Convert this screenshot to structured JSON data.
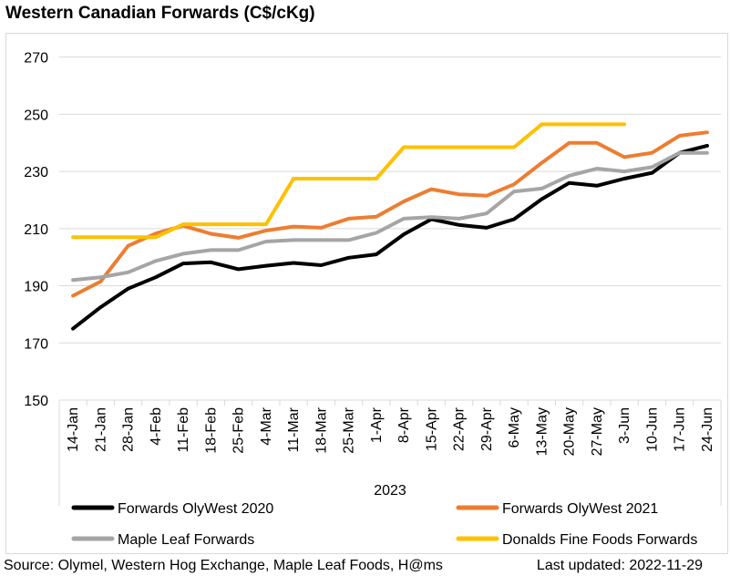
{
  "title": "Western Canadian Forwards (C$/cKg)",
  "footer": {
    "source": "Source: Olymel, Western Hog Exchange, Maple Leaf Foods, H@ms",
    "updated": "Last updated:  2022-11-29"
  },
  "chart_data": {
    "type": "line",
    "title": "Western Canadian Forwards (C$/cKg)",
    "xlabel": "2023",
    "ylabel": "",
    "ylim": [
      150,
      275
    ],
    "yticks": [
      150,
      170,
      190,
      210,
      230,
      250,
      270
    ],
    "grid": "horizontal",
    "legend_position": "bottom",
    "categories": [
      "14-Jan",
      "21-Jan",
      "28-Jan",
      "4-Feb",
      "11-Feb",
      "18-Feb",
      "25-Feb",
      "4-Mar",
      "11-Mar",
      "18-Mar",
      "25-Mar",
      "1-Apr",
      "8-Apr",
      "15-Apr",
      "22-Apr",
      "29-Apr",
      "6-May",
      "13-May",
      "20-May",
      "27-May",
      "3-Jun",
      "10-Jun",
      "17-Jun",
      "24-Jun"
    ],
    "series": [
      {
        "name": "Forwards OlyWest 2020",
        "color": "#000000",
        "values": [
          175,
          182.5,
          189,
          193,
          197.8,
          198.2,
          195.8,
          197,
          198,
          197.2,
          199.8,
          201,
          208,
          213.3,
          211.3,
          210.3,
          213.3,
          220.3,
          226,
          225,
          227.5,
          229.5,
          236.5,
          239
        ]
      },
      {
        "name": "Forwards OlyWest 2021",
        "color": "#ED7D31",
        "values": [
          186.5,
          191.5,
          204,
          208.3,
          211,
          208.2,
          206.8,
          209.3,
          210.7,
          210.3,
          213.5,
          214.2,
          219.5,
          223.8,
          222,
          221.5,
          225.5,
          233,
          240,
          240,
          235,
          236.5,
          242.5,
          243.7
        ]
      },
      {
        "name": "Maple Leaf Forwards",
        "color": "#A5A5A5",
        "values": [
          192,
          193,
          194.7,
          198.7,
          201.2,
          202.5,
          202.5,
          205.5,
          206,
          206,
          206,
          208.5,
          213.5,
          214,
          213.5,
          215.3,
          223,
          224,
          228.5,
          231,
          230,
          231.5,
          236.5,
          236.5
        ]
      },
      {
        "name": "Donalds Fine Foods Forwards",
        "color": "#FFC000",
        "values": [
          207,
          207,
          207,
          207,
          211.5,
          211.5,
          211.5,
          211.5,
          227.5,
          227.5,
          227.5,
          227.5,
          238.5,
          238.5,
          238.5,
          238.5,
          238.5,
          246.5,
          246.5,
          246.5,
          246.5,
          null,
          null,
          null
        ]
      }
    ]
  }
}
